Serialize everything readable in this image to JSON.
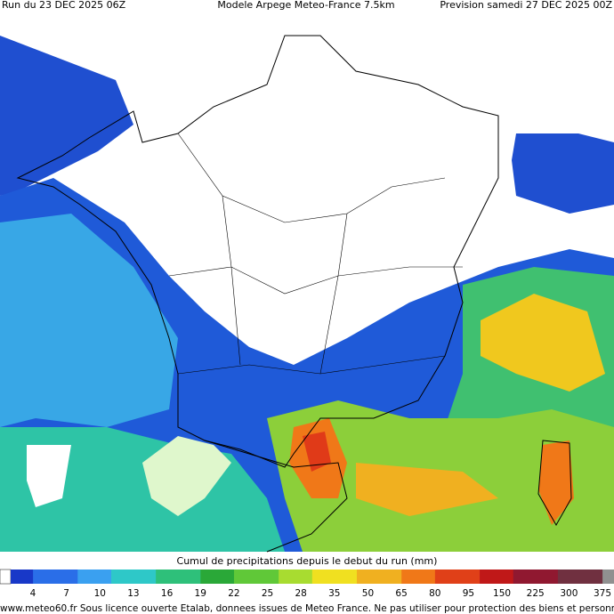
{
  "header": {
    "run": "Run du 23 DEC 2025 06Z",
    "model": "Modele Arpege Meteo-France 7.5km",
    "forecast": "Prevision samedi 27 DEC 2025 00Z"
  },
  "legend": {
    "title": "Cumul de precipitations depuis le debut du run (mm)",
    "ticks": [
      "4",
      "7",
      "10",
      "13",
      "16",
      "19",
      "22",
      "25",
      "28",
      "35",
      "50",
      "65",
      "80",
      "95",
      "150",
      "225",
      "300",
      "375"
    ]
  },
  "footer": {
    "text": "www.meteo60.fr Sous licence ouverte Etalab, donnees issues de Meteo France. Ne pas utiliser pour protection des biens et personnes"
  }
}
